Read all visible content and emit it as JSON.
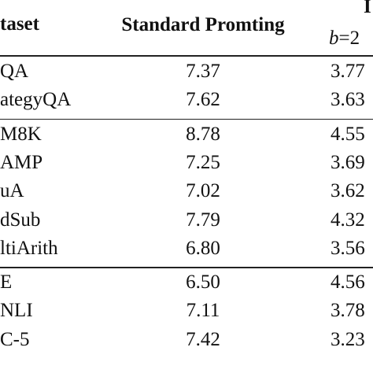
{
  "header": {
    "dataset": "taset",
    "standard": "Standard Promting",
    "method": "I",
    "method_var": "b",
    "method_rest": "=2"
  },
  "table": {
    "groups": [
      [
        [
          "QA",
          "7.37",
          "3.77"
        ],
        [
          "ategyQA",
          "7.62",
          "3.63"
        ]
      ],
      [
        [
          "M8K",
          "8.78",
          "4.55"
        ],
        [
          "AMP",
          "7.25",
          "3.69"
        ],
        [
          "uA",
          "7.02",
          "3.62"
        ],
        [
          "dSub",
          "7.79",
          "4.32"
        ],
        [
          "ltiArith",
          "6.80",
          "3.56"
        ]
      ],
      [
        [
          "E",
          "6.50",
          "4.56"
        ],
        [
          "NLI",
          "7.11",
          "3.78"
        ],
        [
          "C-5",
          "7.42",
          "3.23"
        ]
      ]
    ]
  }
}
